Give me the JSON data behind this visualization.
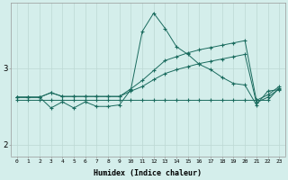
{
  "xlabel": "Humidex (Indice chaleur)",
  "ylabel": "",
  "bg_color": "#d4eeeb",
  "line_color": "#1a6b5e",
  "grid_color": "#bcd8d4",
  "xlim": [
    -0.5,
    23.5
  ],
  "ylim": [
    1.85,
    3.85
  ],
  "xticks": [
    0,
    1,
    2,
    3,
    4,
    5,
    6,
    7,
    8,
    9,
    10,
    11,
    12,
    13,
    14,
    15,
    16,
    17,
    18,
    19,
    20,
    21,
    22,
    23
  ],
  "yticks": [
    2,
    3
  ],
  "line1_x": [
    0,
    1,
    2,
    3,
    4,
    5,
    6,
    7,
    8,
    9,
    10,
    11,
    12,
    13,
    14,
    15,
    16,
    17,
    18,
    19,
    20,
    21,
    22,
    23
  ],
  "line1_y": [
    2.58,
    2.58,
    2.58,
    2.58,
    2.58,
    2.58,
    2.58,
    2.58,
    2.58,
    2.58,
    2.58,
    2.58,
    2.58,
    2.58,
    2.58,
    2.58,
    2.58,
    2.58,
    2.58,
    2.58,
    2.58,
    2.58,
    2.58,
    2.74
  ],
  "line2_x": [
    0,
    1,
    2,
    3,
    4,
    5,
    6,
    7,
    8,
    9,
    10,
    11,
    12,
    13,
    14,
    15,
    16,
    17,
    18,
    19,
    20,
    21,
    22,
    23
  ],
  "line2_y": [
    2.62,
    2.62,
    2.62,
    2.68,
    2.63,
    2.63,
    2.63,
    2.63,
    2.63,
    2.63,
    2.7,
    2.76,
    2.85,
    2.93,
    2.98,
    3.02,
    3.06,
    3.09,
    3.12,
    3.15,
    3.18,
    2.55,
    2.62,
    2.73
  ],
  "line3_x": [
    0,
    1,
    2,
    3,
    4,
    5,
    6,
    7,
    8,
    9,
    10,
    11,
    12,
    13,
    14,
    15,
    16,
    17,
    18,
    19,
    20,
    21,
    22,
    23
  ],
  "line3_y": [
    2.62,
    2.62,
    2.62,
    2.68,
    2.63,
    2.63,
    2.63,
    2.63,
    2.63,
    2.63,
    2.73,
    2.84,
    2.97,
    3.1,
    3.15,
    3.2,
    3.24,
    3.27,
    3.3,
    3.33,
    3.36,
    2.58,
    2.65,
    2.76
  ],
  "line4_x": [
    0,
    1,
    2,
    3,
    4,
    5,
    6,
    7,
    8,
    9,
    10,
    11,
    12,
    13,
    14,
    15,
    16,
    17,
    18,
    19,
    20,
    21,
    22,
    23
  ],
  "line4_y": [
    2.62,
    2.62,
    2.62,
    2.48,
    2.56,
    2.48,
    2.56,
    2.5,
    2.5,
    2.52,
    2.72,
    3.48,
    3.72,
    3.52,
    3.28,
    3.18,
    3.05,
    2.98,
    2.88,
    2.8,
    2.78,
    2.52,
    2.7,
    2.72
  ]
}
